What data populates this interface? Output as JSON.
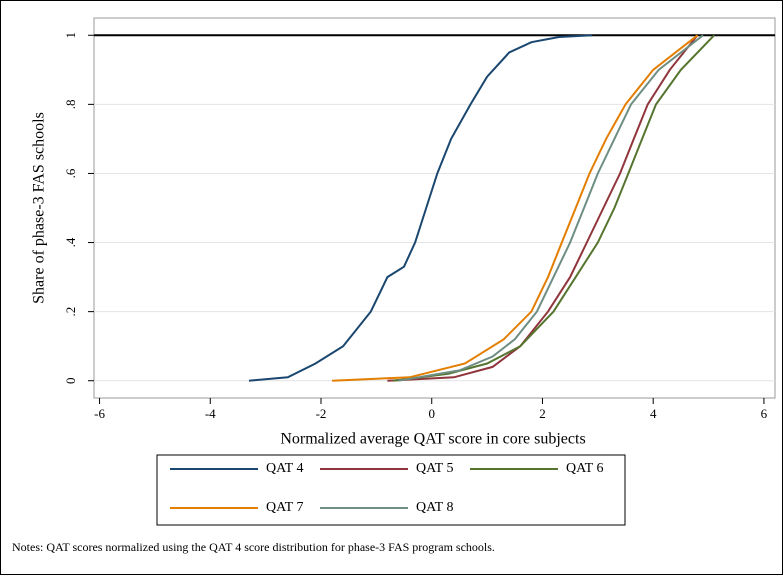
{
  "chart_data": {
    "type": "line",
    "x_label": "Normalized average QAT  score in core subjects",
    "y_label": "Share of phase-3 FAS schools",
    "note": "Notes: QAT scores normalized using the QAT 4 score distribution for phase-3 FAS program schools.",
    "xlim": [
      -6.1,
      6.2
    ],
    "ylim": [
      -0.05,
      1.05
    ],
    "xticks": [
      -6,
      -4,
      -2,
      0,
      2,
      4,
      6
    ],
    "yticks": [
      0,
      {
        "value": 0.2,
        "label": ".2"
      },
      {
        "value": 0.4,
        "label": ".4"
      },
      {
        "value": 0.6,
        "label": ".6"
      },
      {
        "value": 0.8,
        "label": ".8"
      },
      1
    ],
    "grid": true,
    "reference_line": 1,
    "series": [
      {
        "name": "QAT 4",
        "color": "#1a476f",
        "x": [
          -3.3,
          -2.6,
          -2.1,
          -1.6,
          -1.1,
          -0.8,
          -0.5,
          -0.3,
          -0.1,
          0.1,
          0.35,
          0.7,
          1.0,
          1.4,
          1.8,
          2.3,
          2.9
        ],
        "values": [
          0,
          0.01,
          0.05,
          0.1,
          0.2,
          0.3,
          0.33,
          0.4,
          0.5,
          0.6,
          0.7,
          0.8,
          0.88,
          0.95,
          0.98,
          0.995,
          1
        ]
      },
      {
        "name": "QAT 5",
        "color": "#90353b",
        "x": [
          -0.8,
          0.4,
          1.1,
          1.6,
          2.1,
          2.5,
          2.8,
          3.1,
          3.4,
          3.65,
          3.9,
          4.3,
          4.8
        ],
        "values": [
          0,
          0.01,
          0.04,
          0.1,
          0.2,
          0.3,
          0.4,
          0.5,
          0.6,
          0.7,
          0.8,
          0.9,
          1
        ]
      },
      {
        "name": "QAT 6",
        "color": "#55752f",
        "x": [
          -0.7,
          0.3,
          1.0,
          1.6,
          2.2,
          2.6,
          3.0,
          3.3,
          3.55,
          3.8,
          4.05,
          4.5,
          5.1
        ],
        "values": [
          0,
          0.02,
          0.05,
          0.1,
          0.2,
          0.3,
          0.4,
          0.5,
          0.6,
          0.7,
          0.8,
          0.9,
          1
        ]
      },
      {
        "name": "QAT 7",
        "color": "#e37e00",
        "x": [
          -1.8,
          -0.4,
          0.6,
          1.3,
          1.8,
          2.1,
          2.35,
          2.6,
          2.85,
          3.15,
          3.5,
          4.0,
          4.8
        ],
        "values": [
          0,
          0.01,
          0.05,
          0.12,
          0.2,
          0.3,
          0.4,
          0.5,
          0.6,
          0.7,
          0.8,
          0.9,
          1
        ]
      },
      {
        "name": "QAT 8",
        "color": "#6e8e84",
        "x": [
          -0.6,
          0.5,
          1.1,
          1.5,
          1.9,
          2.2,
          2.5,
          2.75,
          3.0,
          3.3,
          3.6,
          4.1,
          4.9
        ],
        "values": [
          0,
          0.03,
          0.07,
          0.12,
          0.2,
          0.3,
          0.4,
          0.5,
          0.6,
          0.7,
          0.8,
          0.9,
          1
        ]
      }
    ]
  }
}
